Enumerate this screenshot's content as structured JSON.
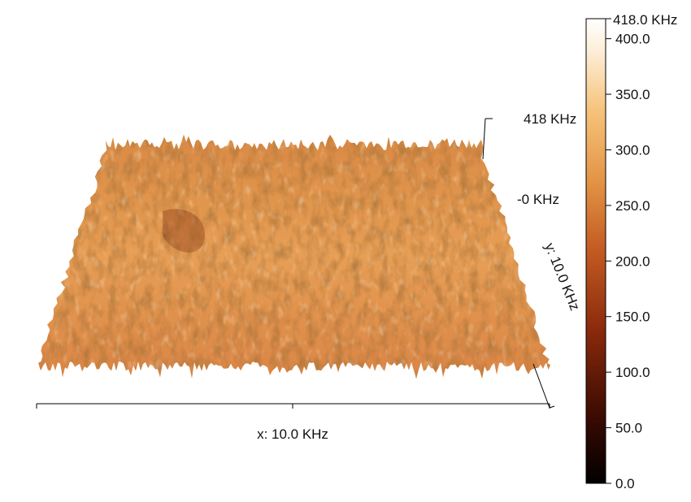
{
  "surface": {
    "z_max_label": "418 KHz",
    "z_min_label": "-0 KHz",
    "x_axis_label": "x: 10.0 KHz",
    "y_axis_label": "y: 10.0 KHz"
  },
  "colorbar": {
    "max_label": "418.0 KHz",
    "ticks": [
      "400.0",
      "350.0",
      "300.0",
      "250.0",
      "200.0",
      "150.0",
      "100.0",
      "50.0",
      "0.0"
    ],
    "tick_values": [
      400,
      350,
      300,
      250,
      200,
      150,
      100,
      50,
      0
    ],
    "range": [
      0,
      418
    ],
    "colors": [
      "#000000",
      "#3a0a02",
      "#8a2a0c",
      "#c25a22",
      "#e39445",
      "#f6c27a",
      "#fdeed8",
      "#ffffff"
    ]
  }
}
